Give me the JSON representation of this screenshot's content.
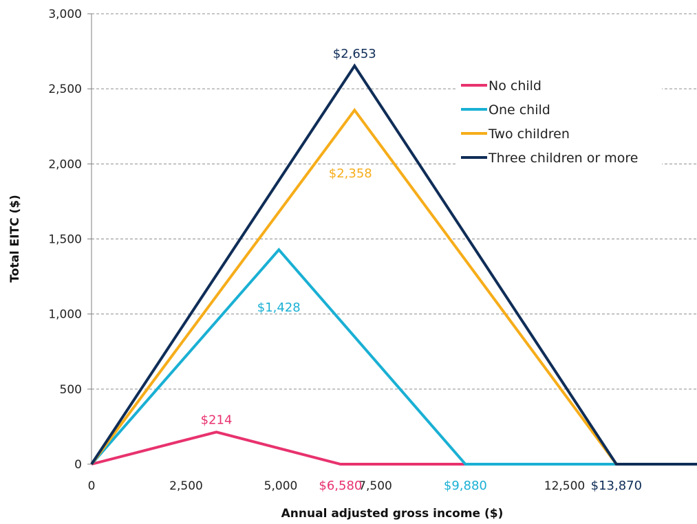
{
  "chart_data": {
    "type": "line",
    "title": "",
    "xlabel": "Annual adjusted gross income ($)",
    "ylabel": "Total EITC ($)",
    "xlim": [
      0,
      16000
    ],
    "ylim": [
      0,
      3000
    ],
    "grid": true,
    "legend_position": "top-right",
    "y_ticks": [
      0,
      500,
      1000,
      1500,
      2000,
      2500,
      3000
    ],
    "y_tick_labels": [
      "0",
      "500",
      "1,000",
      "1,500",
      "2,000",
      "2,500",
      "3,000"
    ],
    "x_ticks": [
      0,
      2500,
      5000,
      7500,
      12500
    ],
    "x_tick_labels": [
      "0",
      "2,500",
      "5,000",
      "7,500",
      "12,500"
    ],
    "series": [
      {
        "name": "No child",
        "color": "#e8326e",
        "points": [
          [
            0,
            0
          ],
          [
            3300,
            214
          ],
          [
            6580,
            0
          ],
          [
            16000,
            0
          ]
        ]
      },
      {
        "name": "One child",
        "color": "#1ab0d4",
        "points": [
          [
            0,
            0
          ],
          [
            4950,
            1428
          ],
          [
            9880,
            0
          ],
          [
            16000,
            0
          ]
        ]
      },
      {
        "name": "Two children",
        "color": "#f6ad1a",
        "points": [
          [
            0,
            0
          ],
          [
            6950,
            2358
          ],
          [
            13870,
            0
          ],
          [
            16000,
            0
          ]
        ]
      },
      {
        "name": "Three children or more",
        "color": "#0f2d57",
        "points": [
          [
            0,
            0
          ],
          [
            6950,
            2653
          ],
          [
            13870,
            0
          ],
          [
            16000,
            0
          ]
        ]
      }
    ],
    "annotations": [
      {
        "text": "$2,653",
        "x": 6950,
        "y": 2653,
        "anchor": "above",
        "color": "#0f2d57"
      },
      {
        "text": "$2,358",
        "x": 6950,
        "y": 2358,
        "anchor": "below-left",
        "color": "#f6ad1a"
      },
      {
        "text": "$1,428",
        "x": 4950,
        "y": 1428,
        "anchor": "below",
        "color": "#1ab0d4"
      },
      {
        "text": "$214",
        "x": 3300,
        "y": 214,
        "anchor": "above",
        "color": "#e8326e"
      },
      {
        "text": "$6,580",
        "x": 6580,
        "y": 0,
        "anchor": "x-axis",
        "color": "#e8326e"
      },
      {
        "text": "$9,880",
        "x": 9880,
        "y": 0,
        "anchor": "x-axis",
        "color": "#1ab0d4"
      },
      {
        "text": "$13,870",
        "x": 13870,
        "y": 0,
        "anchor": "x-axis",
        "color": "#0f2d57"
      }
    ]
  }
}
